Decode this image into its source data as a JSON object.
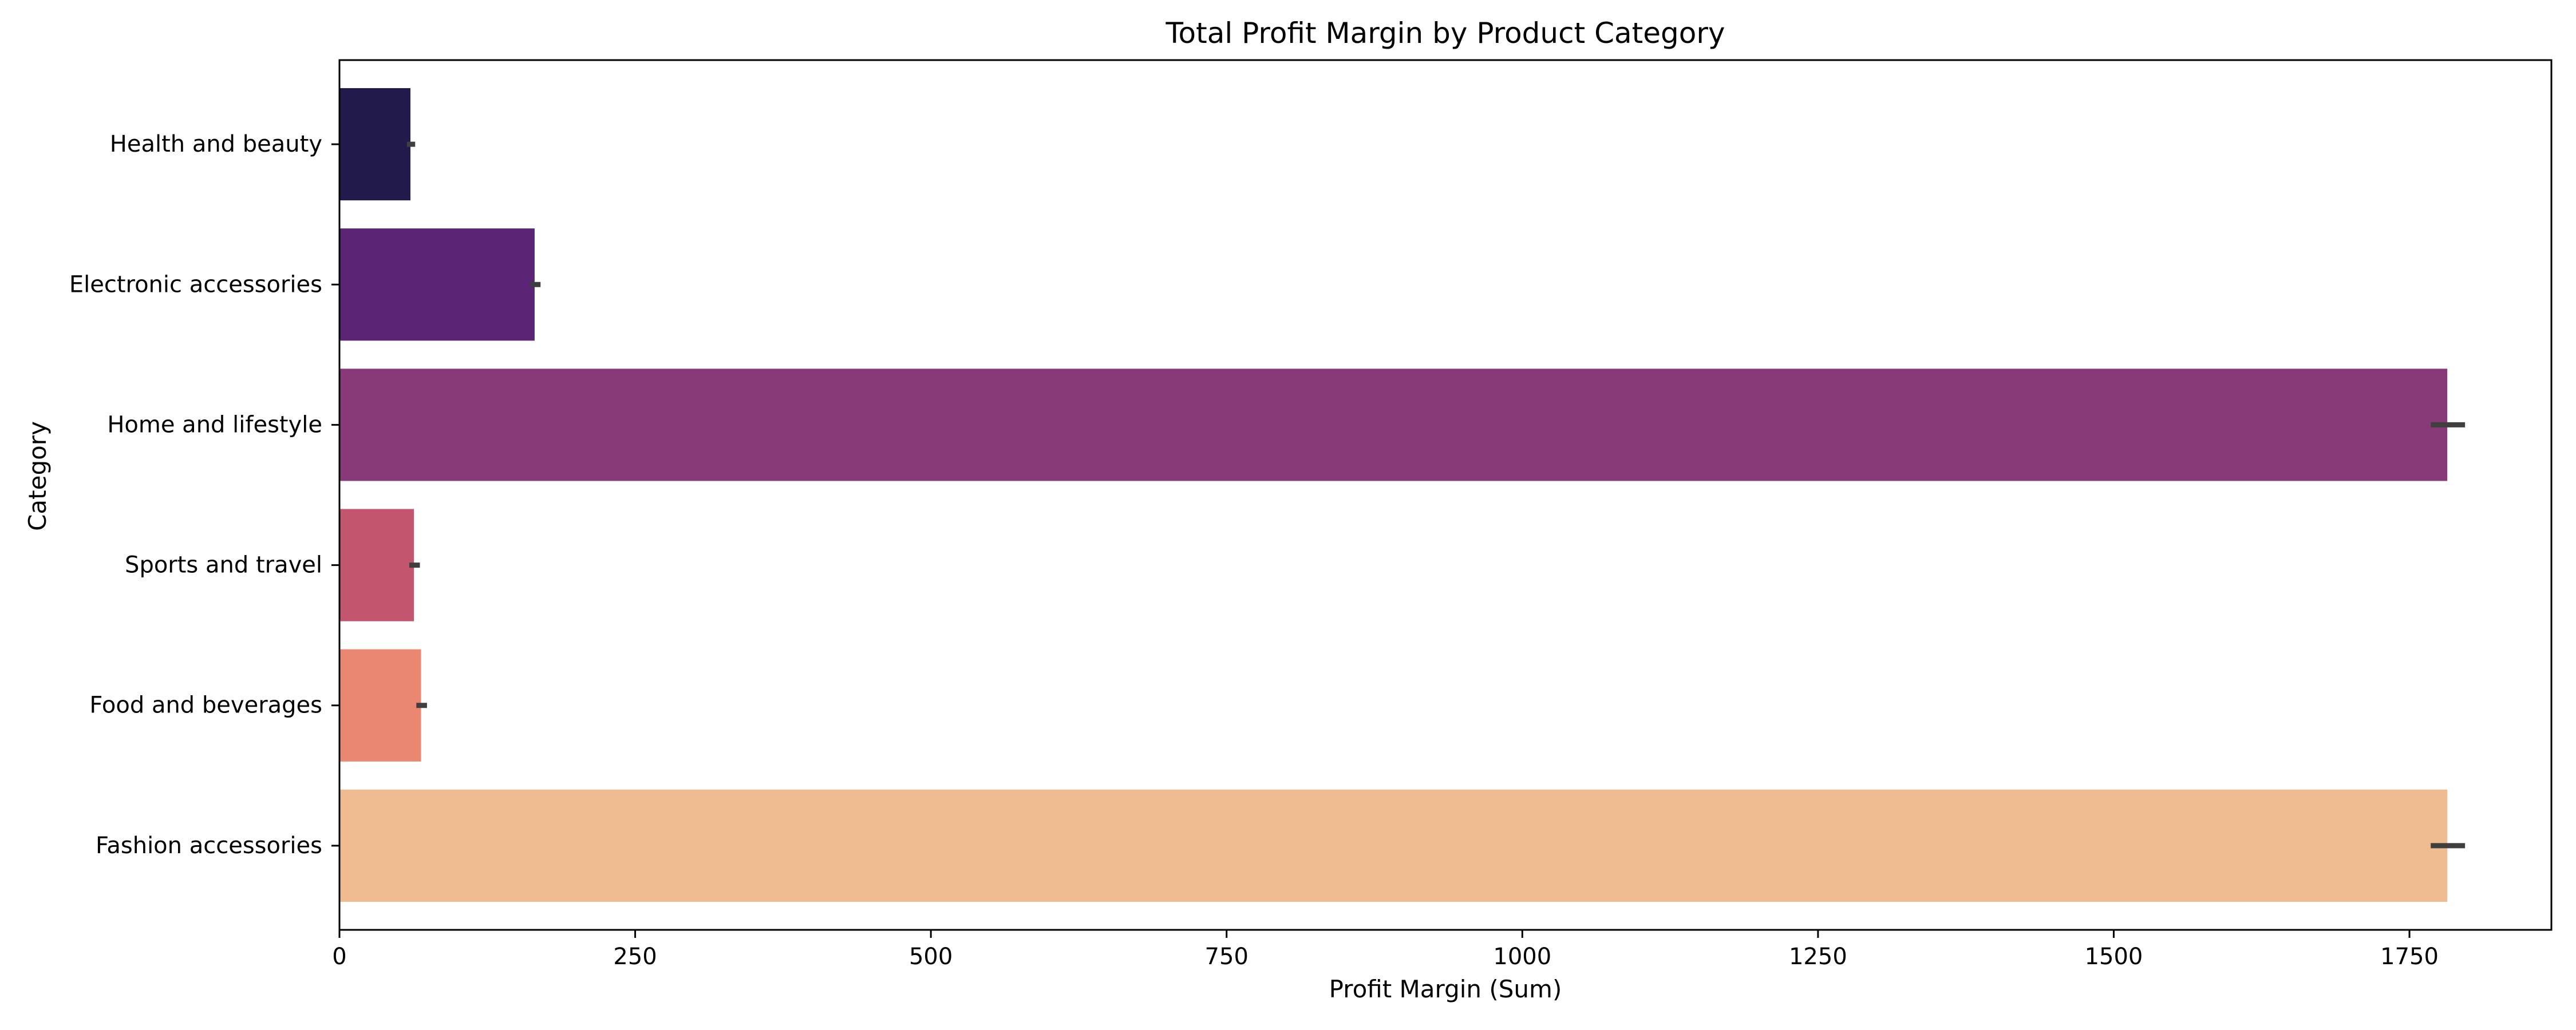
{
  "chart_data": {
    "type": "bar",
    "orientation": "horizontal",
    "title": "Total Profit Margin by Product Category",
    "xlabel": "Profit Margin (Sum)",
    "ylabel": "Category",
    "xlim": [
      0,
      1870
    ],
    "xticks": [
      0,
      250,
      500,
      750,
      1000,
      1250,
      1500,
      1750
    ],
    "grid": false,
    "legend": "none",
    "categories": [
      "Health and beauty",
      "Electronic accessories",
      "Home and lifestyle",
      "Sports and travel",
      "Food and beverages",
      "Fashion accessories"
    ],
    "values": [
      60,
      165,
      1782,
      63,
      69,
      1782
    ],
    "error_intervals": [
      [
        57,
        64
      ],
      [
        161,
        170
      ],
      [
        1768,
        1797
      ],
      [
        59,
        68
      ],
      [
        65,
        74
      ],
      [
        1768,
        1797
      ]
    ],
    "colors": [
      "#221a4a",
      "#5c2474",
      "#883a78",
      "#c3566f",
      "#e98770",
      "#efbc91"
    ],
    "error_color": "#3f3f3f"
  }
}
